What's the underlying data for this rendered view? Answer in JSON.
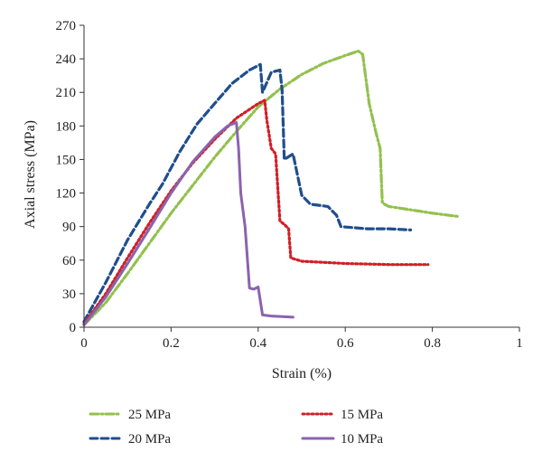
{
  "chart_data": {
    "type": "line",
    "title": "",
    "xlabel": "Strain (%)",
    "ylabel": "Axial stress (MPa)",
    "xlim": [
      0,
      1
    ],
    "ylim": [
      0,
      270
    ],
    "x_ticks": [
      0,
      0.2,
      0.4,
      0.6,
      0.8,
      1
    ],
    "x_tick_labels": [
      "0",
      "0.2",
      "0.4",
      "0.6",
      "0.8",
      "1"
    ],
    "y_ticks": [
      0,
      30,
      60,
      90,
      120,
      150,
      180,
      210,
      240,
      270
    ],
    "y_tick_labels": [
      "0",
      "30",
      "60",
      "90",
      "120",
      "150",
      "180",
      "210",
      "240",
      "270"
    ],
    "grid": false,
    "legend_position": "bottom",
    "series": [
      {
        "name": "25 MPa",
        "color": "#92c14e",
        "style": "dash-dot",
        "x": [
          0.0,
          0.05,
          0.1,
          0.15,
          0.2,
          0.25,
          0.3,
          0.35,
          0.4,
          0.45,
          0.5,
          0.55,
          0.6,
          0.63,
          0.64,
          0.655,
          0.67,
          0.68,
          0.685,
          0.69,
          0.7,
          0.75,
          0.8,
          0.86
        ],
        "y": [
          2,
          22,
          48,
          75,
          102,
          127,
          152,
          175,
          197,
          213,
          226,
          236,
          243,
          247,
          244,
          200,
          175,
          160,
          112,
          110,
          108,
          105,
          102,
          99
        ]
      },
      {
        "name": "20 MPa",
        "color": "#1f4e8c",
        "style": "dashed",
        "x": [
          0.0,
          0.05,
          0.1,
          0.15,
          0.18,
          0.22,
          0.26,
          0.3,
          0.34,
          0.38,
          0.405,
          0.41,
          0.43,
          0.45,
          0.455,
          0.46,
          0.48,
          0.5,
          0.52,
          0.56,
          0.58,
          0.59,
          0.65,
          0.7,
          0.75
        ],
        "y": [
          5,
          40,
          78,
          110,
          128,
          157,
          182,
          200,
          218,
          230,
          235,
          210,
          228,
          230,
          212,
          150,
          155,
          118,
          110,
          108,
          100,
          90,
          88,
          88,
          87
        ]
      },
      {
        "name": "15 MPa",
        "color": "#d11f26",
        "style": "dotted",
        "x": [
          0.0,
          0.05,
          0.1,
          0.15,
          0.2,
          0.25,
          0.3,
          0.35,
          0.4,
          0.415,
          0.42,
          0.43,
          0.44,
          0.45,
          0.46,
          0.47,
          0.475,
          0.5,
          0.6,
          0.7,
          0.79
        ],
        "y": [
          3,
          30,
          62,
          93,
          122,
          147,
          168,
          187,
          200,
          203,
          185,
          160,
          155,
          95,
          92,
          88,
          62,
          59,
          57,
          56,
          56
        ]
      },
      {
        "name": "10 MPa",
        "color": "#8a63ad",
        "style": "solid",
        "x": [
          0.0,
          0.05,
          0.1,
          0.15,
          0.2,
          0.25,
          0.3,
          0.33,
          0.35,
          0.355,
          0.36,
          0.37,
          0.38,
          0.39,
          0.4,
          0.41,
          0.43,
          0.48
        ],
        "y": [
          2,
          27,
          57,
          88,
          120,
          148,
          170,
          180,
          183,
          160,
          120,
          90,
          35,
          34,
          36,
          11,
          10,
          9
        ]
      }
    ]
  }
}
